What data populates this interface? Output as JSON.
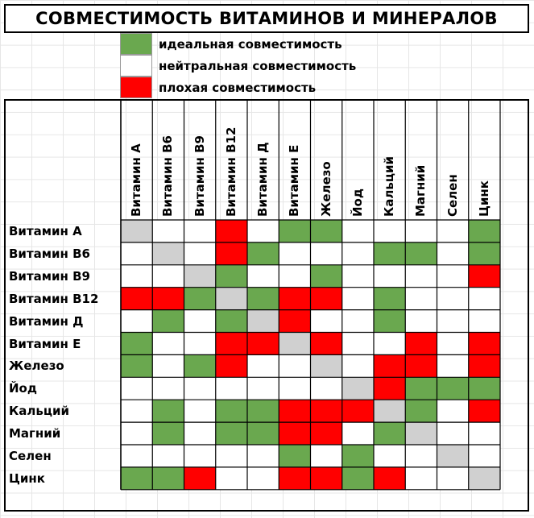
{
  "title": "СОВМЕСТИМОСТЬ ВИТАМИНОВ И МИНЕРАЛОВ",
  "legend": [
    {
      "label": "идеальная совместимость",
      "color": "#6aa84f"
    },
    {
      "label": "нейтральная совместимость",
      "color": "#ffffff"
    },
    {
      "label": "плохая совместимость",
      "color": "#ff0000"
    }
  ],
  "colors": {
    "good": "#6aa84f",
    "neutral": "#ffffff",
    "bad": "#ff0000",
    "self": "#d0d0d0"
  },
  "columns": [
    "Витамин А",
    "Витамин В6",
    "Витамин В9",
    "Витамин В12",
    "Витамин Д",
    "Витамин Е",
    "Железо",
    "Йод",
    "Кальций",
    "Магний",
    "Селен",
    "Цинк"
  ],
  "rows": [
    "Витамин А",
    "Витамин В6",
    "Витамин В9",
    "Витамин В12",
    "Витамин Д",
    "Витамин Е",
    "Железо",
    "Йод",
    "Кальций",
    "Магний",
    "Селен",
    "Цинк"
  ],
  "matrix": [
    [
      "s",
      "n",
      "n",
      "b",
      "n",
      "g",
      "g",
      "n",
      "n",
      "n",
      "n",
      "g"
    ],
    [
      "n",
      "s",
      "n",
      "b",
      "g",
      "n",
      "n",
      "n",
      "g",
      "g",
      "n",
      "g"
    ],
    [
      "n",
      "n",
      "s",
      "g",
      "n",
      "n",
      "g",
      "n",
      "n",
      "n",
      "n",
      "b"
    ],
    [
      "b",
      "b",
      "g",
      "s",
      "g",
      "b",
      "b",
      "n",
      "g",
      "n",
      "n",
      "n"
    ],
    [
      "n",
      "g",
      "n",
      "g",
      "s",
      "b",
      "n",
      "n",
      "g",
      "n",
      "n",
      "n"
    ],
    [
      "g",
      "n",
      "n",
      "b",
      "b",
      "s",
      "b",
      "n",
      "n",
      "b",
      "n",
      "b"
    ],
    [
      "g",
      "n",
      "g",
      "b",
      "n",
      "n",
      "s",
      "n",
      "b",
      "b",
      "n",
      "b"
    ],
    [
      "n",
      "n",
      "n",
      "n",
      "n",
      "n",
      "n",
      "s",
      "b",
      "g",
      "g",
      "g"
    ],
    [
      "n",
      "g",
      "n",
      "g",
      "g",
      "b",
      "b",
      "b",
      "s",
      "g",
      "n",
      "b"
    ],
    [
      "n",
      "g",
      "n",
      "g",
      "g",
      "b",
      "b",
      "n",
      "g",
      "s",
      "n",
      "n"
    ],
    [
      "n",
      "n",
      "n",
      "n",
      "n",
      "g",
      "n",
      "g",
      "n",
      "n",
      "s",
      "n"
    ],
    [
      "g",
      "g",
      "b",
      "n",
      "n",
      "b",
      "b",
      "g",
      "b",
      "n",
      "n",
      "s"
    ]
  ]
}
